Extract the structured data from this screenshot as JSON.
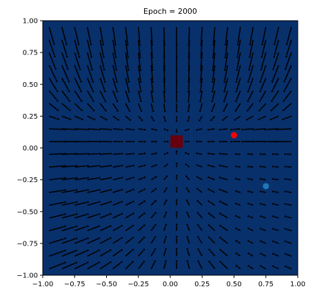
{
  "chart_data": {
    "type": "scatter",
    "title": "Epoch = 2000",
    "xlabel": "",
    "ylabel": "",
    "xlim": [
      -1.0,
      1.0
    ],
    "ylim": [
      -1.0,
      1.0
    ],
    "xticks": [
      -1.0,
      -0.75,
      -0.5,
      -0.25,
      0.0,
      0.25,
      0.5,
      0.75,
      1.0
    ],
    "yticks": [
      -1.0,
      -0.75,
      -0.5,
      -0.25,
      0.0,
      0.25,
      0.5,
      0.75,
      1.0
    ],
    "xtick_labels": [
      "−1.00",
      "−0.75",
      "−0.50",
      "−0.25",
      "0.00",
      "0.25",
      "0.50",
      "0.75",
      "1.00"
    ],
    "ytick_labels": [
      "−1.00",
      "−0.75",
      "−0.50",
      "−0.25",
      "0.00",
      "0.25",
      "0.50",
      "0.75",
      "1.00"
    ],
    "grid": false,
    "background_color": "#08306b",
    "field_color": "#000000",
    "field_grid_step": 0.1,
    "markers": [
      {
        "x": 0.5,
        "y": 0.1,
        "shape": "circle",
        "color": "#ff0000"
      },
      {
        "x": 0.75,
        "y": -0.3,
        "shape": "circle",
        "color": "#1f77b4"
      },
      {
        "x": 0.05,
        "y": 0.05,
        "shape": "square",
        "color": "#67000d"
      }
    ]
  }
}
